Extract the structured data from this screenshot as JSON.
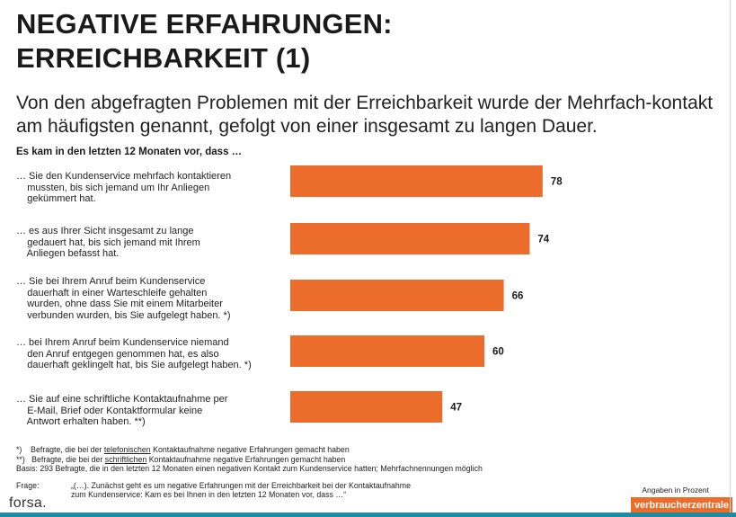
{
  "header": {
    "title_line1": "NEGATIVE ERFAHRUNGEN:",
    "title_line2": "ERREICHBARKEIT (1)",
    "subtitle": "Von den abgefragten Problemen mit der Erreichbarkeit wurde der Mehrfach-kontakt am häufigsten genannt, gefolgt von einer insgesamt zu langen Dauer.",
    "question": "Es kam in den letzten 12 Monaten vor, dass …"
  },
  "chart_data": {
    "type": "bar",
    "orientation": "horizontal",
    "categories": [
      [
        "… Sie den Kundenservice mehrfach kontaktieren",
        "    mussten, bis sich jemand um Ihr Anliegen",
        "    gekümmert hat."
      ],
      [
        "… es aus Ihrer Sicht insgesamt zu lange",
        "    gedauert hat, bis sich jemand mit Ihrem",
        "    Anliegen befasst hat."
      ],
      [
        "… Sie bei Ihrem Anruf beim Kundenservice",
        "    dauerhaft in einer Warteschleife gehalten",
        "    wurden, ohne dass Sie mit einem Mitarbeiter",
        "    verbunden wurden, bis Sie aufgelegt haben. *)"
      ],
      [
        "… bei Ihrem Anruf beim Kundenservice niemand",
        "    den Anruf entgegen genommen hat, es also",
        "    dauerhaft geklingelt hat, bis Sie aufgelegt haben. *)"
      ],
      [
        "… Sie auf eine schriftliche Kontaktaufnahme per",
        "    E-Mail, Brief oder Kontaktformular keine",
        "    Antwort erhalten haben. **)"
      ]
    ],
    "values": [
      78,
      74,
      66,
      60,
      47
    ],
    "unit": "Angaben in Prozent",
    "xlim": [
      0,
      100
    ],
    "bar_color": "#ec6c2c"
  },
  "footer": {
    "note1_mark": "*)",
    "note1_pre": "Befragte, die bei der ",
    "note1_u": "telefonischen",
    "note1_post": " Kontaktaufnahme negative Erfahrungen gemacht haben",
    "note2_mark": "**)",
    "note2_pre": "Befragte, die bei der ",
    "note2_u": "schriftlichen",
    "note2_post": " Kontaktaufnahme negative Erfahrungen gemacht haben",
    "basis": "Basis: 293 Befragte, die in den letzten 12 Monaten einen negativen Kontakt zum Kundenservice hatten; Mehrfachnennungen möglich",
    "frage_label": "Frage:",
    "frage_line1": "„(…). Zunächst geht es um negative Erfahrungen mit der Erreichbarkeit bei der Kontaktaufnahme",
    "frage_line2": "zum Kundenservice: Kam es bei Ihnen in den letzten 12 Monaten vor, dass …“",
    "source": "forsa.",
    "unit_label": "Angaben in Prozent",
    "logo_text": "verbraucherzentrale"
  }
}
